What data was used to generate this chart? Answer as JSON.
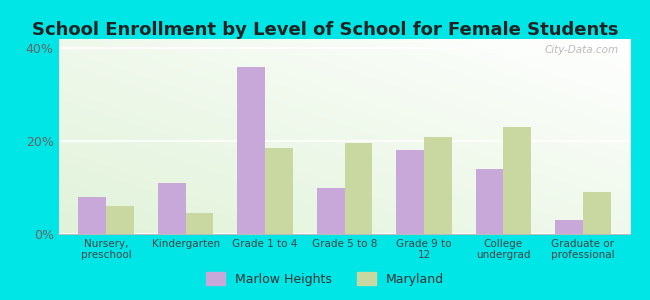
{
  "title": "School Enrollment by Level of School for Female Students",
  "categories": [
    "Nursery,\npreschool",
    "Kindergarten",
    "Grade 1 to 4",
    "Grade 5 to 8",
    "Grade 9 to\n12",
    "College\nundergrad",
    "Graduate or\nprofessional"
  ],
  "marlow_heights": [
    8,
    11,
    36,
    10,
    18,
    14,
    3
  ],
  "maryland": [
    6,
    4.5,
    18.5,
    19.5,
    21,
    23,
    9
  ],
  "bar_color_marlow": "#c8a8d8",
  "bar_color_maryland": "#c8d8a0",
  "ylim": [
    0,
    42
  ],
  "yticks": [
    0,
    20,
    40
  ],
  "ytick_labels": [
    "0%",
    "20%",
    "40%"
  ],
  "background_color_outer": "#00e5e5",
  "legend_marlow": "Marlow Heights",
  "legend_maryland": "Maryland",
  "title_fontsize": 13,
  "watermark": "City-Data.com"
}
